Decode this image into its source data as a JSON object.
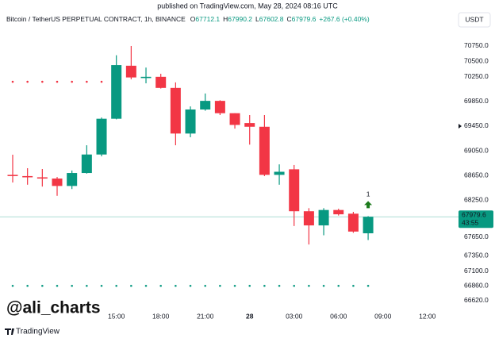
{
  "header": {
    "published": "published on TradingView.com, May 28, 2024 08:16 UTC"
  },
  "chart_data": {
    "type": "candlestick",
    "symbol": "Bitcoin / TetherUS PERPETUAL CONTRACT, 1h, BINANCE",
    "ohlc_legend": [
      {
        "label": "O",
        "value": 67712.1
      },
      {
        "label": "H",
        "value": 67990.2
      },
      {
        "label": "L",
        "value": 67602.8
      },
      {
        "label": "C",
        "value": 67979.6
      }
    ],
    "change": "+267.6 (+0.40%)",
    "currency": "USDT",
    "countdown": "43:55",
    "watermark": "@ali_charts",
    "brand": "TradingView",
    "up_color": "#089981",
    "down_color": "#f23645",
    "categories": [
      null,
      null,
      null,
      null,
      null,
      null,
      null,
      "15:00",
      null,
      null,
      "18:00",
      null,
      null,
      "21:00",
      null,
      null,
      "28",
      null,
      null,
      "03:00",
      null,
      null,
      "06:00",
      null,
      null,
      "09:00",
      null,
      null,
      "12:00"
    ],
    "open": [
      68660,
      68640,
      68620,
      68600,
      68480,
      68690,
      68990,
      69570,
      70430,
      70230,
      70250,
      70070,
      69330,
      69720,
      69860,
      69660,
      69500,
      69440,
      68660,
      68750,
      68070,
      67840,
      68090,
      68030,
      67712.1,
      null,
      null,
      null,
      null
    ],
    "high": [
      68987,
      68768,
      68755,
      68625,
      68730,
      69140,
      69590,
      70600,
      70750,
      70400,
      70300,
      70160,
      69770,
      69980,
      69870,
      69660,
      69630,
      69630,
      68830,
      68820,
      68120,
      68120,
      68110,
      68060,
      67990.2,
      null,
      null,
      null,
      null
    ],
    "low": [
      68536,
      68500,
      68470,
      68320,
      68430,
      68680,
      68960,
      69560,
      70210,
      70145,
      70060,
      69140,
      69270,
      69700,
      69630,
      69410,
      69150,
      68640,
      68500,
      67830,
      67530,
      67680,
      68000,
      67720,
      67602.8,
      null,
      null,
      null,
      null
    ],
    "close": [
      68640,
      68620,
      68600,
      68480,
      68690,
      68990,
      69570,
      70440,
      70240,
      70250,
      70070,
      69330,
      69720,
      69860,
      69660,
      69470,
      69440,
      68660,
      68710,
      68070,
      67840,
      68090,
      68020,
      67740,
      67979.6,
      null,
      null,
      null,
      null
    ],
    "indicators": [
      {
        "color": "#f23645",
        "values": [
          70170,
          70170,
          70170,
          70170,
          70170,
          70170,
          70170,
          null,
          null,
          null,
          null,
          null,
          null,
          null,
          null,
          null,
          null,
          null,
          null,
          null,
          null,
          null,
          null,
          null,
          null,
          null,
          null,
          null,
          null
        ]
      },
      {
        "color": "#089981",
        "values": [
          66860,
          66860,
          66860,
          66860,
          66860,
          66860,
          66860,
          66860,
          66860,
          66860,
          66860,
          66860,
          66860,
          66860,
          66860,
          66860,
          66860,
          66860,
          66860,
          66860,
          66860,
          66860,
          66860,
          66860,
          66860,
          null,
          null,
          null,
          null
        ]
      }
    ],
    "annotation": {
      "text": "1",
      "index": 24
    },
    "ylim": [
      66477,
      70917
    ],
    "yticks": [
      {
        "value": 70750,
        "label": "70750.0"
      },
      {
        "value": 70500,
        "label": "70500.0"
      },
      {
        "value": 70250,
        "label": "70250.0"
      },
      {
        "value": 69850,
        "label": "69850.0"
      },
      {
        "value": 69450,
        "label": "69450.0"
      },
      {
        "value": 69050,
        "label": "69050.0"
      },
      {
        "value": 68650,
        "label": "68650.0"
      },
      {
        "value": 68250,
        "label": "68250.0"
      },
      {
        "value": 67650,
        "label": "67650.0"
      },
      {
        "value": 67350,
        "label": "67350.0"
      },
      {
        "value": 67100,
        "label": "67100.0"
      },
      {
        "value": 66860,
        "label": "66860.0"
      },
      {
        "value": 66620,
        "label": "66620.0"
      }
    ],
    "marked_tick": 4
  }
}
